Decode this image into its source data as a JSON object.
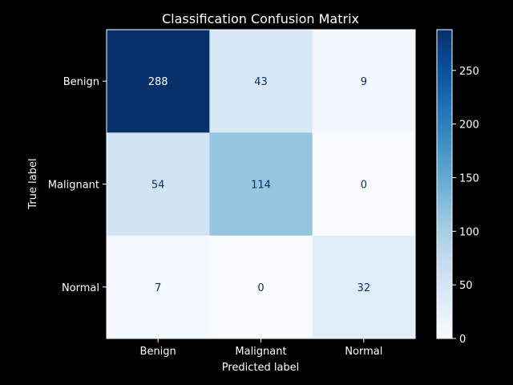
{
  "chart_data": {
    "type": "heatmap",
    "title": "Classification Confusion Matrix",
    "xlabel": "Predicted label",
    "ylabel": "True label",
    "x_categories": [
      "Benign",
      "Malignant",
      "Normal"
    ],
    "y_categories": [
      "Benign",
      "Malignant",
      "Normal"
    ],
    "values": [
      [
        288,
        43,
        9
      ],
      [
        54,
        114,
        0
      ],
      [
        7,
        0,
        32
      ]
    ],
    "colormap": "Blues",
    "colorbar": {
      "range": [
        0,
        288
      ],
      "ticks": [
        0,
        50,
        100,
        150,
        200,
        250
      ]
    },
    "grid": false
  },
  "colors": {
    "background": "#000000",
    "foreground": "#ffffff",
    "light_text": "#08306b",
    "dark_text": "#ffffff"
  }
}
